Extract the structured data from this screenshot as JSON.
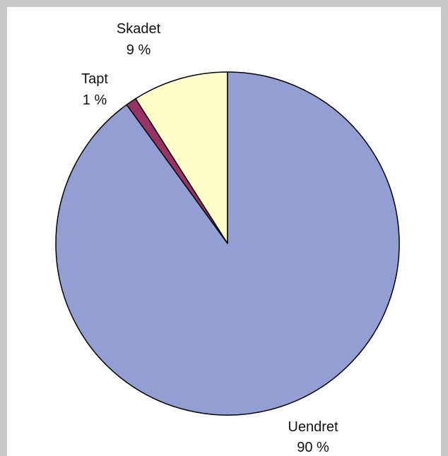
{
  "chart_data": {
    "type": "pie",
    "slices": [
      {
        "label": "Skadet",
        "value": 9,
        "value_label": "9 %",
        "color": "#ffffcc"
      },
      {
        "label": "Tapt",
        "value": 1,
        "value_label": "1 %",
        "color": "#993366"
      },
      {
        "label": "Uendret",
        "value": 90,
        "value_label": "90 %",
        "color": "#939fd2"
      }
    ],
    "start_angle": "12 o'clock",
    "direction": "counterclockwise",
    "edge_color": "#000000",
    "legend": "none"
  }
}
